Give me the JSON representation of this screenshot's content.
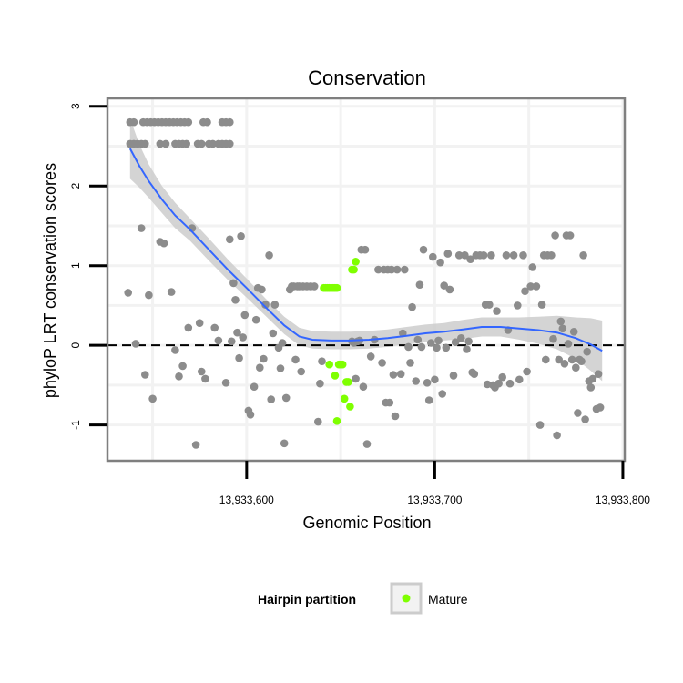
{
  "chart_data": {
    "type": "scatter",
    "title": "Conservation",
    "xlabel": "Genomic Position",
    "ylabel": "phyloP LRT conservation scores",
    "xlim": [
      13933526,
      13933801
    ],
    "ylim": [
      -1.45,
      3.1
    ],
    "x_ticks": [
      13933600,
      13933700,
      13933800
    ],
    "x_tick_labels": [
      "13,933,600",
      "13,933,700",
      "13,933,800"
    ],
    "y_ticks": [
      -1,
      0,
      1,
      2,
      3
    ],
    "y_tick_labels": [
      "-1",
      "0",
      "1",
      "2",
      "3"
    ],
    "reference_line": {
      "y": 0,
      "style": "dashed"
    },
    "legend": {
      "title": "Hairpin partition",
      "position": "bottom",
      "entries": [
        {
          "label": "Mature",
          "color": "#7fff00"
        }
      ]
    },
    "colors": {
      "other": "#8c8c8c",
      "mature": "#7fff00",
      "smooth": "#3366ff",
      "ribbon": "#cccccc",
      "panel_border": "#7f7f7f",
      "grid": "#f2f2f2"
    },
    "series": [
      {
        "name": "Other",
        "color": "#8c8c8c",
        "points": [
          [
            13933538,
            2.8
          ],
          [
            13933540,
            2.8
          ],
          [
            13933545,
            2.8
          ],
          [
            13933547,
            2.8
          ],
          [
            13933549,
            2.8
          ],
          [
            13933551,
            2.8
          ],
          [
            13933553,
            2.8
          ],
          [
            13933555,
            2.8
          ],
          [
            13933557,
            2.8
          ],
          [
            13933559,
            2.8
          ],
          [
            13933561,
            2.8
          ],
          [
            13933563,
            2.8
          ],
          [
            13933565,
            2.8
          ],
          [
            13933567,
            2.8
          ],
          [
            13933569,
            2.8
          ],
          [
            13933577,
            2.8
          ],
          [
            13933579,
            2.8
          ],
          [
            13933587,
            2.8
          ],
          [
            13933589,
            2.8
          ],
          [
            13933591,
            2.8
          ],
          [
            13933538,
            2.53
          ],
          [
            13933540,
            2.53
          ],
          [
            13933542,
            2.53
          ],
          [
            13933544,
            2.53
          ],
          [
            13933546,
            2.53
          ],
          [
            13933554,
            2.53
          ],
          [
            13933557,
            2.53
          ],
          [
            13933562,
            2.53
          ],
          [
            13933564,
            2.53
          ],
          [
            13933566,
            2.53
          ],
          [
            13933568,
            2.53
          ],
          [
            13933574,
            2.53
          ],
          [
            13933576,
            2.53
          ],
          [
            13933580,
            2.53
          ],
          [
            13933582,
            2.53
          ],
          [
            13933585,
            2.53
          ],
          [
            13933587,
            2.53
          ],
          [
            13933589,
            2.53
          ],
          [
            13933591,
            2.53
          ],
          [
            13933537,
            0.66
          ],
          [
            13933541,
            0.02
          ],
          [
            13933544,
            1.47
          ],
          [
            13933546,
            -0.37
          ],
          [
            13933548,
            0.63
          ],
          [
            13933550,
            -0.67
          ],
          [
            13933554,
            1.3
          ],
          [
            13933556,
            1.28
          ],
          [
            13933560,
            0.67
          ],
          [
            13933562,
            -0.06
          ],
          [
            13933564,
            -0.39
          ],
          [
            13933566,
            -0.26
          ],
          [
            13933569,
            0.22
          ],
          [
            13933571,
            1.47
          ],
          [
            13933573,
            -1.25
          ],
          [
            13933575,
            0.28
          ],
          [
            13933576,
            -0.33
          ],
          [
            13933578,
            -0.42
          ],
          [
            13933583,
            0.22
          ],
          [
            13933585,
            0.06
          ],
          [
            13933589,
            -0.47
          ],
          [
            13933591,
            1.33
          ],
          [
            13933592,
            0.05
          ],
          [
            13933593,
            0.78
          ],
          [
            13933594,
            0.57
          ],
          [
            13933595,
            0.16
          ],
          [
            13933596,
            -0.16
          ],
          [
            13933597,
            1.37
          ],
          [
            13933598,
            0.1
          ],
          [
            13933599,
            0.38
          ],
          [
            13933601,
            -0.82
          ],
          [
            13933602,
            -0.87
          ],
          [
            13933604,
            -0.52
          ],
          [
            13933605,
            0.32
          ],
          [
            13933606,
            0.72
          ],
          [
            13933607,
            -0.28
          ],
          [
            13933608,
            0.7
          ],
          [
            13933609,
            -0.17
          ],
          [
            13933610,
            0.51
          ],
          [
            13933612,
            1.13
          ],
          [
            13933613,
            -0.68
          ],
          [
            13933614,
            0.15
          ],
          [
            13933615,
            0.51
          ],
          [
            13933617,
            -0.03
          ],
          [
            13933618,
            -0.29
          ],
          [
            13933619,
            0.03
          ],
          [
            13933620,
            -1.23
          ],
          [
            13933621,
            -0.66
          ],
          [
            13933623,
            0.7
          ],
          [
            13933624,
            0.74
          ],
          [
            13933625,
            0.74
          ],
          [
            13933626,
            -0.18
          ],
          [
            13933627,
            0.74
          ],
          [
            13933628,
            0.74
          ],
          [
            13933629,
            -0.33
          ],
          [
            13933630,
            0.74
          ],
          [
            13933632,
            0.74
          ],
          [
            13933634,
            0.74
          ],
          [
            13933636,
            0.74
          ],
          [
            13933638,
            -0.96
          ],
          [
            13933639,
            -0.48
          ],
          [
            13933640,
            -0.2
          ],
          [
            13933656,
            0.05
          ],
          [
            13933657,
            0.03
          ],
          [
            13933658,
            -0.42
          ],
          [
            13933659,
            0.05
          ],
          [
            13933660,
            0.06
          ],
          [
            13933661,
            1.2
          ],
          [
            13933662,
            -0.52
          ],
          [
            13933663,
            1.2
          ],
          [
            13933664,
            -1.24
          ],
          [
            13933666,
            -0.14
          ],
          [
            13933668,
            0.07
          ],
          [
            13933670,
            0.95
          ],
          [
            13933672,
            -0.22
          ],
          [
            13933673,
            0.95
          ],
          [
            13933674,
            -0.72
          ],
          [
            13933675,
            0.95
          ],
          [
            13933676,
            -0.72
          ],
          [
            13933677,
            0.95
          ],
          [
            13933678,
            -0.37
          ],
          [
            13933679,
            -0.89
          ],
          [
            13933680,
            0.95
          ],
          [
            13933682,
            -0.36
          ],
          [
            13933683,
            0.15
          ],
          [
            13933684,
            0.95
          ],
          [
            13933686,
            -0.02
          ],
          [
            13933687,
            -0.22
          ],
          [
            13933688,
            0.48
          ],
          [
            13933690,
            -0.45
          ],
          [
            13933691,
            0.07
          ],
          [
            13933692,
            0.76
          ],
          [
            13933693,
            -0.02
          ],
          [
            13933694,
            1.2
          ],
          [
            13933696,
            -0.47
          ],
          [
            13933697,
            -0.69
          ],
          [
            13933698,
            0.03
          ],
          [
            13933699,
            1.11
          ],
          [
            13933700,
            -0.43
          ],
          [
            13933701,
            -0.03
          ],
          [
            13933702,
            0.06
          ],
          [
            13933703,
            1.04
          ],
          [
            13933704,
            -0.61
          ],
          [
            13933705,
            0.75
          ],
          [
            13933706,
            -0.03
          ],
          [
            13933707,
            1.15
          ],
          [
            13933708,
            0.7
          ],
          [
            13933710,
            -0.38
          ],
          [
            13933711,
            0.04
          ],
          [
            13933713,
            1.13
          ],
          [
            13933714,
            0.09
          ],
          [
            13933716,
            1.13
          ],
          [
            13933717,
            -0.05
          ],
          [
            13933718,
            0.05
          ],
          [
            13933719,
            1.08
          ],
          [
            13933720,
            -0.34
          ],
          [
            13933721,
            -0.36
          ],
          [
            13933722,
            1.13
          ],
          [
            13933724,
            1.13
          ],
          [
            13933726,
            1.13
          ],
          [
            13933727,
            0.51
          ],
          [
            13933728,
            -0.49
          ],
          [
            13933729,
            0.51
          ],
          [
            13933730,
            1.13
          ],
          [
            13933731,
            -0.5
          ],
          [
            13933732,
            -0.53
          ],
          [
            13933733,
            0.43
          ],
          [
            13933734,
            -0.48
          ],
          [
            13933736,
            -0.4
          ],
          [
            13933738,
            1.13
          ],
          [
            13933739,
            0.19
          ],
          [
            13933740,
            -0.48
          ],
          [
            13933742,
            1.13
          ],
          [
            13933744,
            0.5
          ],
          [
            13933745,
            -0.43
          ],
          [
            13933747,
            1.13
          ],
          [
            13933748,
            0.68
          ],
          [
            13933749,
            -0.33
          ],
          [
            13933751,
            0.74
          ],
          [
            13933752,
            0.98
          ],
          [
            13933754,
            0.74
          ],
          [
            13933756,
            -1.0
          ],
          [
            13933757,
            0.51
          ],
          [
            13933758,
            1.13
          ],
          [
            13933759,
            -0.18
          ],
          [
            13933760,
            1.13
          ],
          [
            13933762,
            1.13
          ],
          [
            13933763,
            0.08
          ],
          [
            13933764,
            1.38
          ],
          [
            13933765,
            -1.13
          ],
          [
            13933766,
            -0.18
          ],
          [
            13933767,
            0.3
          ],
          [
            13933768,
            0.21
          ],
          [
            13933769,
            -0.23
          ],
          [
            13933770,
            1.38
          ],
          [
            13933771,
            0.02
          ],
          [
            13933772,
            1.38
          ],
          [
            13933773,
            -0.18
          ],
          [
            13933774,
            0.17
          ],
          [
            13933775,
            -0.28
          ],
          [
            13933776,
            -0.85
          ],
          [
            13933777,
            -0.18
          ],
          [
            13933778,
            -0.2
          ],
          [
            13933779,
            1.13
          ],
          [
            13933780,
            -0.93
          ],
          [
            13933781,
            -0.08
          ],
          [
            13933782,
            -0.45
          ],
          [
            13933783,
            -0.53
          ],
          [
            13933784,
            -0.42
          ],
          [
            13933786,
            -0.8
          ],
          [
            13933787,
            -0.36
          ],
          [
            13933788,
            -0.78
          ]
        ]
      },
      {
        "name": "Mature",
        "color": "#7fff00",
        "points": [
          [
            13933641,
            0.72
          ],
          [
            13933642,
            0.72
          ],
          [
            13933643,
            0.72
          ],
          [
            13933644,
            0.72
          ],
          [
            13933645,
            0.72
          ],
          [
            13933646,
            0.72
          ],
          [
            13933647,
            0.72
          ],
          [
            13933648,
            0.72
          ],
          [
            13933644,
            -0.24
          ],
          [
            13933647,
            -0.38
          ],
          [
            13933648,
            -0.95
          ],
          [
            13933649,
            -0.24
          ],
          [
            13933650,
            -0.24
          ],
          [
            13933651,
            -0.24
          ],
          [
            13933652,
            -0.67
          ],
          [
            13933653,
            -0.46
          ],
          [
            13933654,
            -0.46
          ],
          [
            13933655,
            -0.77
          ],
          [
            13933656,
            0.95
          ],
          [
            13933657,
            0.95
          ],
          [
            13933658,
            1.05
          ]
        ]
      }
    ],
    "smooth": {
      "method": "loess",
      "color": "#3366ff",
      "x": [
        13933538,
        13933543,
        13933548,
        13933555,
        13933562,
        13933570,
        13933580,
        13933590,
        13933600,
        13933610,
        13933620,
        13933628,
        13933635,
        13933645,
        13933655,
        13933665,
        13933675,
        13933685,
        13933695,
        13933705,
        13933715,
        13933725,
        13933735,
        13933745,
        13933755,
        13933765,
        13933775,
        13933783,
        13933789
      ],
      "y": [
        2.47,
        2.25,
        2.06,
        1.83,
        1.63,
        1.45,
        1.2,
        0.95,
        0.72,
        0.48,
        0.25,
        0.11,
        0.07,
        0.06,
        0.06,
        0.07,
        0.09,
        0.12,
        0.15,
        0.17,
        0.2,
        0.23,
        0.23,
        0.21,
        0.19,
        0.16,
        0.09,
        0.01,
        -0.07
      ],
      "ci_low": [
        2.09,
        1.98,
        1.85,
        1.66,
        1.47,
        1.31,
        1.06,
        0.82,
        0.6,
        0.37,
        0.14,
        0.0,
        -0.04,
        -0.05,
        -0.05,
        -0.04,
        -0.02,
        0.01,
        0.04,
        0.06,
        0.08,
        0.11,
        0.11,
        0.07,
        0.02,
        -0.05,
        -0.17,
        -0.32,
        -0.45
      ],
      "ci_high": [
        2.85,
        2.52,
        2.27,
        2.0,
        1.79,
        1.59,
        1.34,
        1.08,
        0.84,
        0.59,
        0.36,
        0.22,
        0.18,
        0.17,
        0.17,
        0.18,
        0.2,
        0.23,
        0.26,
        0.28,
        0.32,
        0.35,
        0.35,
        0.35,
        0.36,
        0.37,
        0.35,
        0.34,
        0.31
      ]
    }
  }
}
